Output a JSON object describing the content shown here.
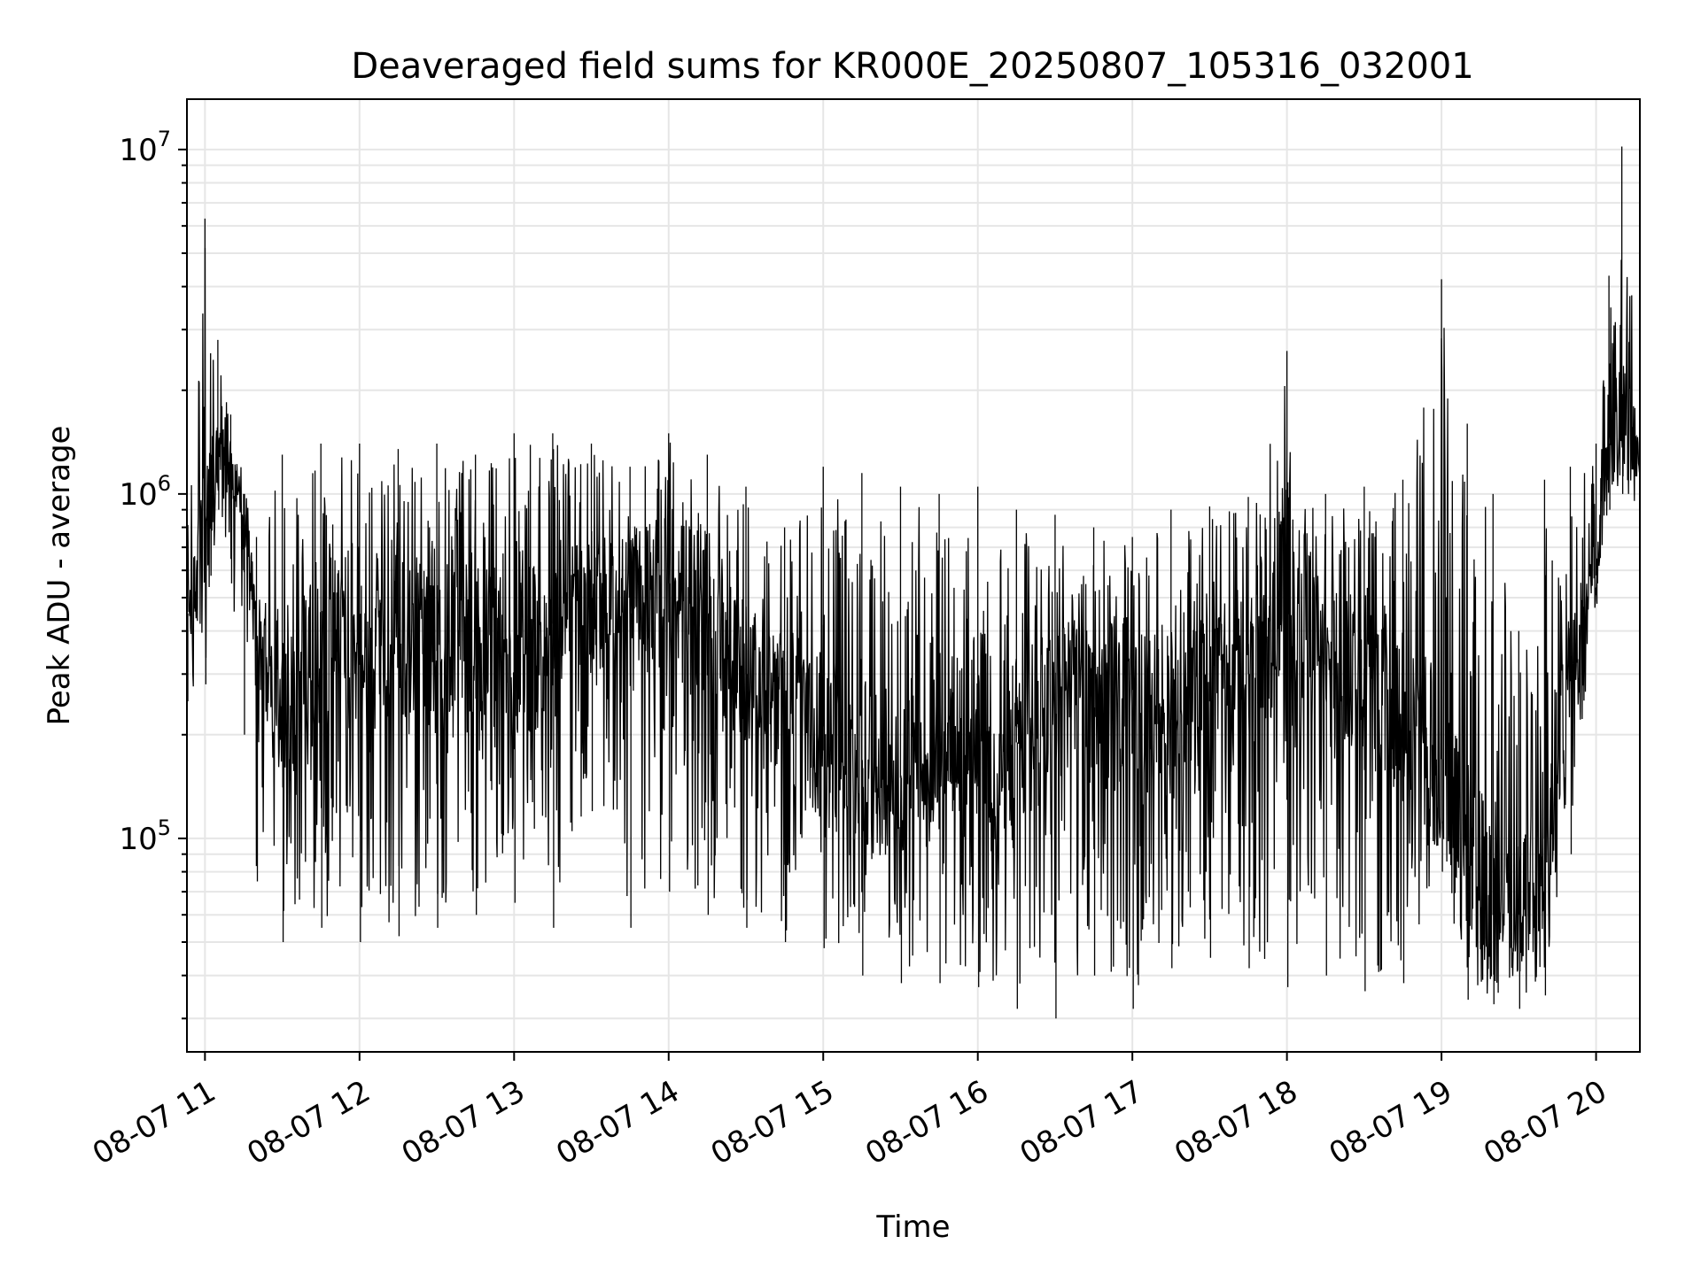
{
  "chart_data": {
    "type": "line",
    "title": "Deaveraged field sums for KR000E_20250807_105316_032001",
    "xlabel": "Time",
    "ylabel": "Peak ADU - average",
    "yscale": "log",
    "ylim": [
      24000,
      14000000
    ],
    "xlim": [
      "2025-08-07 10:53",
      "2025-08-07 20:17"
    ],
    "grid": true,
    "line_color": "#000000",
    "grid_color": "#e6e6e6",
    "x_ticks": [
      "08-07 11",
      "08-07 12",
      "08-07 13",
      "08-07 14",
      "08-07 15",
      "08-07 16",
      "08-07 17",
      "08-07 18",
      "08-07 19",
      "08-07 20"
    ],
    "y_ticks": [
      {
        "base": "10",
        "exp": "5",
        "value": 100000
      },
      {
        "base": "10",
        "exp": "6",
        "value": 1000000
      },
      {
        "base": "10",
        "exp": "7",
        "value": 10000000
      }
    ],
    "series": [
      {
        "x": [
          "2025-08-07 10:53",
          "2025-08-07 11:00",
          "2025-08-07 11:05",
          "2025-08-07 11:10",
          "2025-08-07 11:15",
          "2025-08-07 11:20",
          "2025-08-07 11:30",
          "2025-08-07 11:45",
          "2025-08-07 12:00",
          "2025-08-07 12:15",
          "2025-08-07 12:30",
          "2025-08-07 12:45",
          "2025-08-07 13:00",
          "2025-08-07 13:15",
          "2025-08-07 13:30",
          "2025-08-07 13:45",
          "2025-08-07 14:00",
          "2025-08-07 14:15",
          "2025-08-07 14:30",
          "2025-08-07 14:45",
          "2025-08-07 15:00",
          "2025-08-07 15:15",
          "2025-08-07 15:30",
          "2025-08-07 15:45",
          "2025-08-07 16:00",
          "2025-08-07 16:15",
          "2025-08-07 16:30",
          "2025-08-07 16:45",
          "2025-08-07 17:00",
          "2025-08-07 17:15",
          "2025-08-07 17:30",
          "2025-08-07 17:45",
          "2025-08-07 18:00",
          "2025-08-07 18:15",
          "2025-08-07 18:30",
          "2025-08-07 18:45",
          "2025-08-07 19:00",
          "2025-08-07 19:10",
          "2025-08-07 19:20",
          "2025-08-07 19:30",
          "2025-08-07 19:40",
          "2025-08-07 19:50",
          "2025-08-07 20:00",
          "2025-08-07 20:05",
          "2025-08-07 20:10",
          "2025-08-07 20:17"
        ],
        "y": [
          450000,
          700000,
          1300000,
          1200000,
          1000000,
          350000,
          250000,
          300000,
          350000,
          400000,
          350000,
          400000,
          300000,
          420000,
          500000,
          450000,
          550000,
          450000,
          300000,
          220000,
          180000,
          160000,
          150000,
          170000,
          200000,
          190000,
          230000,
          240000,
          270000,
          220000,
          250000,
          300000,
          550000,
          320000,
          280000,
          220000,
          170000,
          90000,
          60000,
          60000,
          100000,
          300000,
          580000,
          1400000,
          1700000,
          1250000
        ],
        "y_max": [
          1100000,
          6300000,
          2800000,
          1700000,
          600000,
          750000,
          1300000,
          1400000,
          1400000,
          1350000,
          1400000,
          1300000,
          1500000,
          1500000,
          1400000,
          1200000,
          1500000,
          1300000,
          1050000,
          800000,
          1200000,
          1150000,
          1050000,
          1000000,
          1050000,
          900000,
          870000,
          800000,
          750000,
          900000,
          920000,
          980000,
          2600000,
          1000000,
          1050000,
          1100000,
          4200000,
          1600000,
          1000000,
          400000,
          1100000,
          1200000,
          1400000,
          4300000,
          10200000,
          2800000
        ],
        "y_min": [
          250000,
          280000,
          900000,
          550000,
          200000,
          75000,
          50000,
          55000,
          50000,
          52000,
          55000,
          60000,
          65000,
          55000,
          120000,
          55000,
          70000,
          60000,
          55000,
          50000,
          48000,
          40000,
          38000,
          38000,
          37000,
          32000,
          30000,
          40000,
          32000,
          42000,
          45000,
          42000,
          37000,
          40000,
          36000,
          38000,
          80000,
          34000,
          33000,
          32000,
          35000,
          90000,
          480000,
          900000,
          1000000,
          750000
        ]
      }
    ]
  }
}
